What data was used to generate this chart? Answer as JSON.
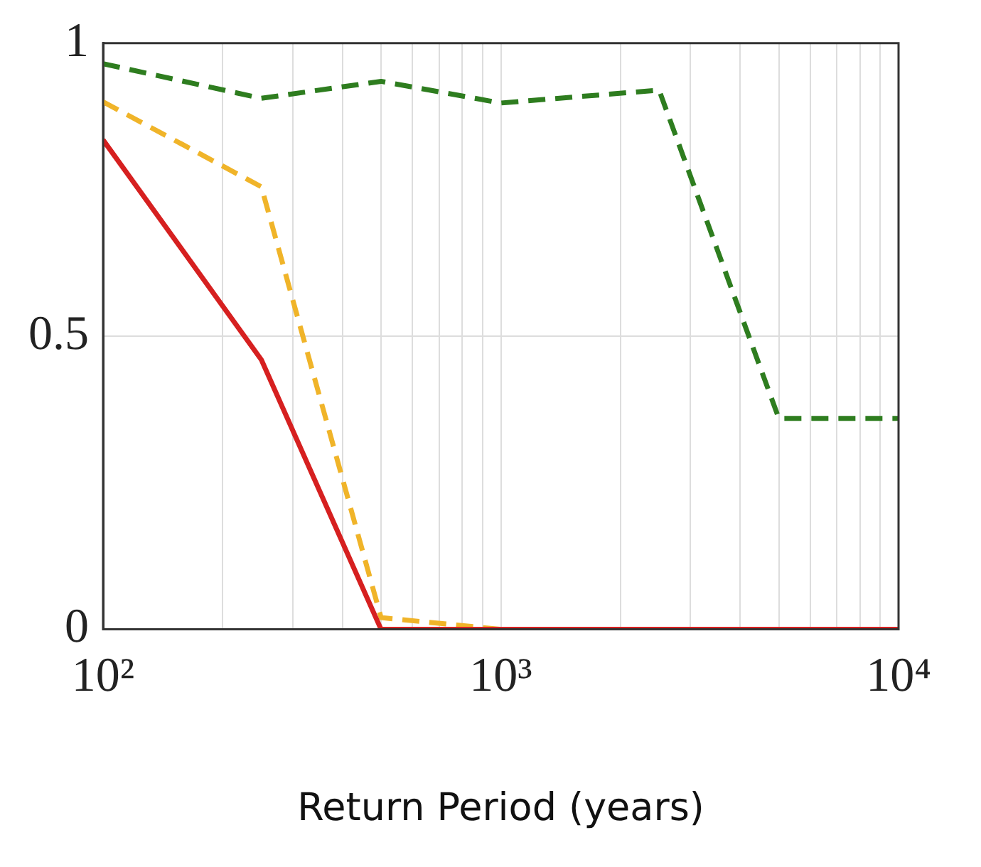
{
  "chart_data": {
    "type": "line",
    "xlabel": "Return Period (years)",
    "x": [
      100,
      250,
      500,
      1000,
      2500,
      5000,
      10000
    ],
    "series": [
      {
        "color": "#2e7d1f",
        "line_style": "dashed",
        "values": [
          0.965,
          0.906,
          0.935,
          0.898,
          0.92,
          0.36,
          0.36
        ]
      },
      {
        "color": "#f0b429",
        "line_style": "dashed",
        "values": [
          0.9,
          0.755,
          0.02,
          0,
          0,
          null,
          null
        ]
      },
      {
        "color": "#d62020",
        "line_style": "solid",
        "values": [
          0.835,
          0.46,
          0,
          0,
          0,
          0,
          0
        ]
      }
    ],
    "log": "x",
    "xlim": [
      100,
      10000
    ],
    "ylim": [
      0,
      1
    ],
    "xticks": [
      {
        "value": 100,
        "label": "10²"
      },
      {
        "value": 200,
        "label": null
      },
      {
        "value": 300,
        "label": null
      },
      {
        "value": 400,
        "label": null
      },
      {
        "value": 500,
        "label": null
      },
      {
        "value": 600,
        "label": null
      },
      {
        "value": 700,
        "label": null
      },
      {
        "value": 800,
        "label": null
      },
      {
        "value": 900,
        "label": null
      },
      {
        "value": 1000,
        "label": "10³"
      },
      {
        "value": 2000,
        "label": null
      },
      {
        "value": 3000,
        "label": null
      },
      {
        "value": 4000,
        "label": null
      },
      {
        "value": 5000,
        "label": null
      },
      {
        "value": 6000,
        "label": null
      },
      {
        "value": 7000,
        "label": null
      },
      {
        "value": 8000,
        "label": null
      },
      {
        "value": 9000,
        "label": null
      },
      {
        "value": 10000,
        "label": "10⁴"
      }
    ],
    "yticks": [
      0,
      0.5,
      1
    ],
    "grid": true,
    "legend": false,
    "marker": "none"
  }
}
